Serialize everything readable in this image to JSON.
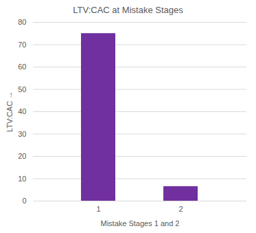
{
  "chart_data": {
    "type": "bar",
    "title": "LTV:CAC at Mistake Stages",
    "x_label": "Mistake Stages 1 and 2",
    "y_label": "LTV:CAC",
    "categories": [
      "1",
      "2"
    ],
    "values": [
      75,
      6.5
    ],
    "color": "#7030a0",
    "ylim": [
      0,
      80
    ],
    "yticks": [
      0,
      10,
      20,
      30,
      40,
      50,
      60,
      70,
      80
    ],
    "grid": true
  }
}
